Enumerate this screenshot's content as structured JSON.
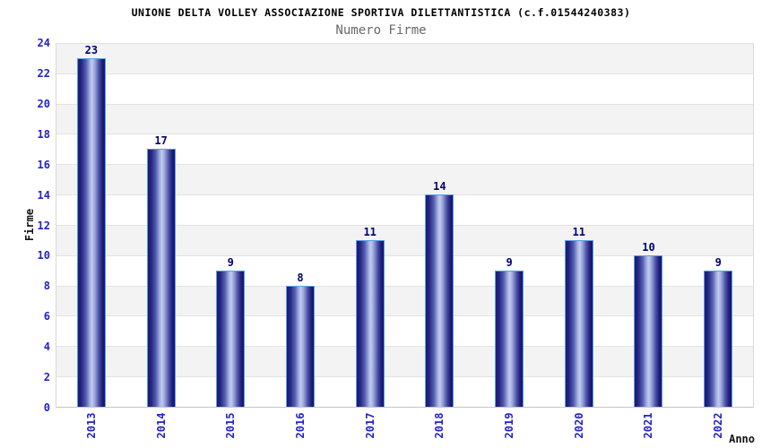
{
  "chart_data": {
    "type": "bar",
    "title": "UNIONE DELTA VOLLEY ASSOCIAZIONE SPORTIVA DILETTANTISTICA (c.f.01544240383)",
    "subtitle": "Numero Firme",
    "xlabel": "Anno",
    "ylabel": "Firme",
    "categories": [
      "2013",
      "2014",
      "2015",
      "2016",
      "2017",
      "2018",
      "2019",
      "2020",
      "2021",
      "2022"
    ],
    "values": [
      23,
      17,
      9,
      8,
      11,
      14,
      9,
      11,
      10,
      9
    ],
    "ylim": [
      0,
      24
    ],
    "ytick_step": 2,
    "ytick_labels": [
      "0",
      "2",
      "4",
      "6",
      "8",
      "10",
      "12",
      "14",
      "16",
      "18",
      "20",
      "22",
      "24"
    ],
    "grid": "horizontal gridlines with alternating gray/white bands every 2 units",
    "legend": "none",
    "colors": {
      "tick_label_blue": "#2222cc",
      "bar_value_navy": "#000075",
      "bar_border_blue": "#56a0ea",
      "bar_gradient_dark": "#1b1b72",
      "bar_gradient_light": "#c2cbf0",
      "band_gray": "#f3f3f3",
      "band_white": "#ffffff",
      "gridline": "#e3e3e3",
      "title_black": "#000000",
      "subtitle_gray": "#686868"
    }
  }
}
